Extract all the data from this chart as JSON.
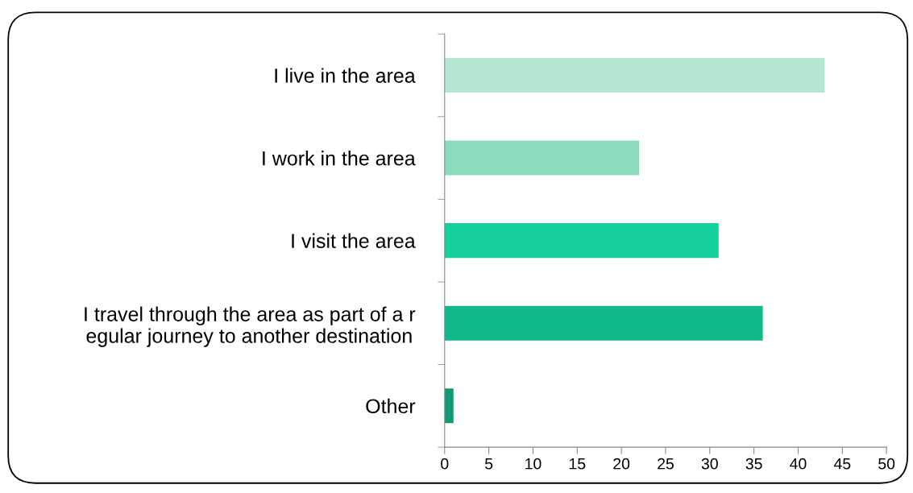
{
  "chart_data": {
    "type": "bar",
    "orientation": "horizontal",
    "categories": [
      "I live in the area",
      "I work in the area",
      "I visit the area",
      "I travel through the area as part of a r\negular journey to another destination",
      "Other"
    ],
    "values": [
      43,
      22,
      31,
      36,
      1
    ],
    "colors": [
      "#b3e7d1",
      "#88dcbb",
      "#13d09c",
      "#10b88a",
      "#0f9a72"
    ],
    "xlim": [
      0,
      50
    ],
    "xticks": [
      0,
      5,
      10,
      15,
      20,
      25,
      30,
      35,
      40,
      45,
      50
    ],
    "grid": false,
    "legend": false
  }
}
